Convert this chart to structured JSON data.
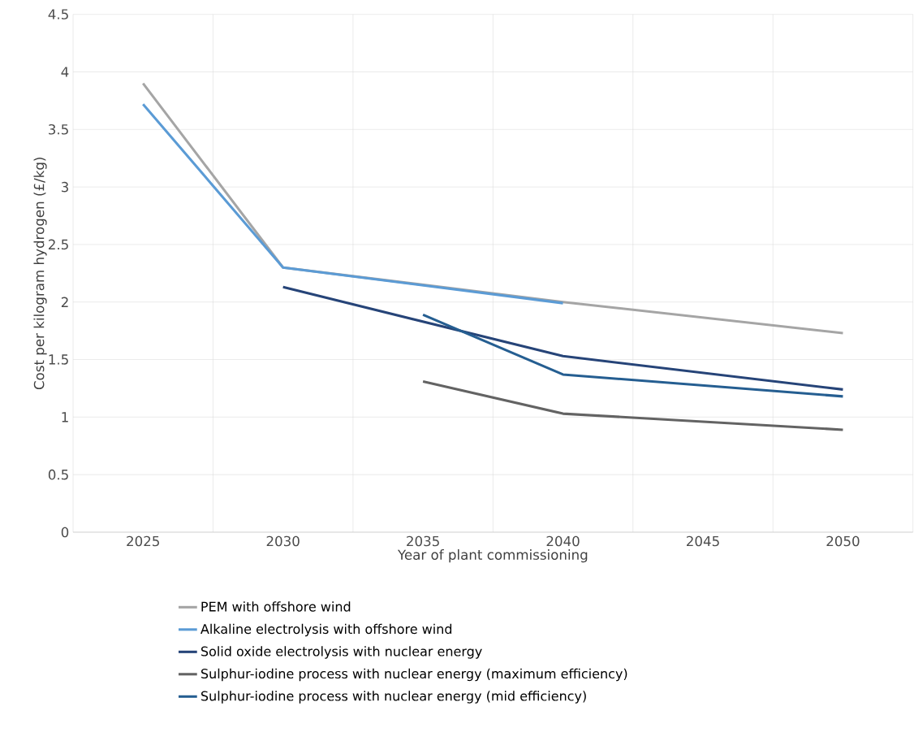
{
  "chart_data": {
    "type": "line",
    "xlabel": "Year of plant commissioning",
    "ylabel": "Cost per kilogram hydrogen (£/kg)",
    "categories": [
      "2025",
      "2030",
      "2035",
      "2040",
      "2045",
      "2050"
    ],
    "series": [
      {
        "name": "PEM with offshore wind",
        "color": "#a5a5a5",
        "values": [
          3.9,
          2.3,
          null,
          2.0,
          null,
          1.73
        ]
      },
      {
        "name": "Alkaline electrolysis with offshore wind",
        "color": "#5b9bd5",
        "values": [
          3.72,
          2.3,
          null,
          1.99,
          null,
          null
        ]
      },
      {
        "name": "Solid oxide electrolysis with nuclear energy",
        "color": "#264478",
        "values": [
          null,
          2.13,
          null,
          1.53,
          null,
          1.24
        ]
      },
      {
        "name": "Sulphur-iodine process with nuclear energy (maximum efficiency)",
        "color": "#636363",
        "values": [
          null,
          null,
          1.31,
          1.03,
          null,
          0.89
        ]
      },
      {
        "name": "Sulphur-iodine process with nuclear energy (mid efficiency)",
        "color": "#255e91",
        "values": [
          null,
          null,
          1.89,
          1.37,
          null,
          1.18
        ]
      }
    ],
    "ylim": [
      0,
      4.5
    ],
    "yticks": [
      0,
      0.5,
      1,
      1.5,
      2,
      2.5,
      3,
      3.5,
      4,
      4.5
    ],
    "grid": true,
    "legend": "bottom",
    "marker": "none",
    "line_style": "solid"
  }
}
